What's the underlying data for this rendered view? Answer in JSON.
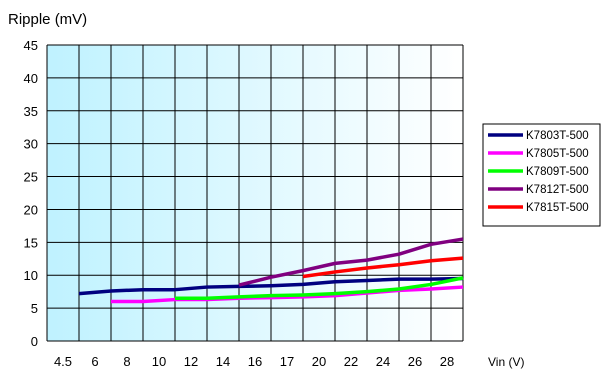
{
  "chart_data": {
    "type": "line",
    "title": "Ripple (mV)",
    "xlabel": "Vin (V)",
    "x_categories": [
      "4.5",
      "6",
      "8",
      "10",
      "12",
      "14",
      "16",
      "17",
      "20",
      "22",
      "24",
      "26",
      "28"
    ],
    "yticks": [
      0,
      5,
      10,
      15,
      20,
      25,
      30,
      35,
      40,
      45
    ],
    "ylim": [
      0,
      45
    ],
    "grid": true,
    "legend_position": "right",
    "series": [
      {
        "name": "K7803T-500",
        "color": "#000080",
        "values": [
          7.2,
          7.6,
          7.8,
          7.8,
          8.2,
          8.3,
          8.4,
          8.6,
          9.0,
          9.2,
          9.4,
          9.4,
          9.5
        ]
      },
      {
        "name": "K7805T-500",
        "color": "#ff00ff",
        "values": [
          null,
          6.0,
          6.0,
          6.3,
          6.3,
          6.5,
          6.6,
          6.7,
          6.9,
          7.3,
          7.7,
          7.9,
          8.2
        ]
      },
      {
        "name": "K7809T-500",
        "color": "#00ff00",
        "values": [
          null,
          null,
          null,
          6.5,
          6.5,
          6.7,
          6.9,
          7.0,
          7.2,
          7.5,
          7.9,
          8.6,
          9.6
        ]
      },
      {
        "name": "K7812T-500",
        "color": "#800080",
        "values": [
          null,
          null,
          null,
          null,
          null,
          8.5,
          9.7,
          10.7,
          11.8,
          12.3,
          13.2,
          14.7,
          15.5
        ]
      },
      {
        "name": "K7815T-500",
        "color": "#ff0000",
        "values": [
          null,
          null,
          null,
          null,
          null,
          null,
          null,
          9.8,
          10.5,
          11.1,
          11.6,
          12.2,
          12.6
        ]
      }
    ]
  }
}
